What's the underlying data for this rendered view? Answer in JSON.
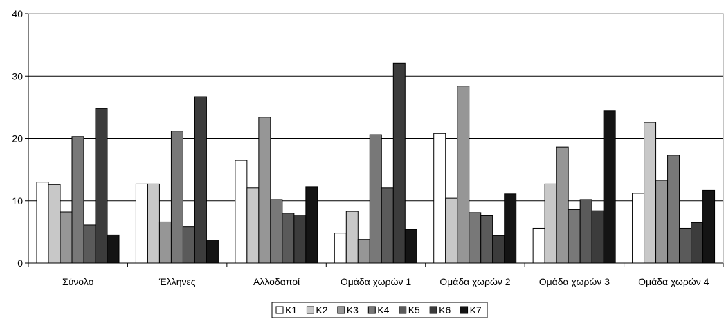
{
  "chart_data": {
    "type": "bar",
    "categories": [
      "Σύνολο",
      "Έλληνες",
      "Αλλοδαποί",
      "Ομάδα χωρών 1",
      "Ομάδα χωρών 2",
      "Ομάδα χωρών 3",
      "Ομάδα χωρών 4"
    ],
    "series": [
      {
        "name": "K1",
        "color": "#ffffff",
        "values": [
          13.0,
          12.7,
          16.5,
          4.8,
          20.8,
          5.6,
          11.2
        ]
      },
      {
        "name": "K2",
        "color": "#c8c8c8",
        "values": [
          12.6,
          12.7,
          12.1,
          8.3,
          10.4,
          12.7,
          22.6
        ]
      },
      {
        "name": "K3",
        "color": "#969696",
        "values": [
          8.2,
          6.6,
          23.4,
          3.8,
          28.4,
          18.6,
          13.3
        ]
      },
      {
        "name": "K4",
        "color": "#787878",
        "values": [
          20.3,
          21.2,
          10.2,
          20.6,
          8.1,
          8.6,
          17.3
        ]
      },
      {
        "name": "K5",
        "color": "#5a5a5a",
        "values": [
          6.1,
          5.8,
          8.0,
          12.1,
          7.6,
          10.2,
          5.6
        ]
      },
      {
        "name": "K6",
        "color": "#3c3c3c",
        "values": [
          24.8,
          26.7,
          7.7,
          32.1,
          4.4,
          8.4,
          6.5
        ]
      },
      {
        "name": "K7",
        "color": "#141414",
        "values": [
          4.5,
          3.7,
          12.2,
          5.4,
          11.1,
          24.4,
          11.7
        ]
      }
    ],
    "title": "",
    "xlabel": "",
    "ylabel": "",
    "ylim": [
      0,
      40
    ],
    "yticks": [
      "0",
      "10",
      "20",
      "30",
      "40"
    ],
    "grid": true,
    "legend_position": "bottom-center"
  }
}
